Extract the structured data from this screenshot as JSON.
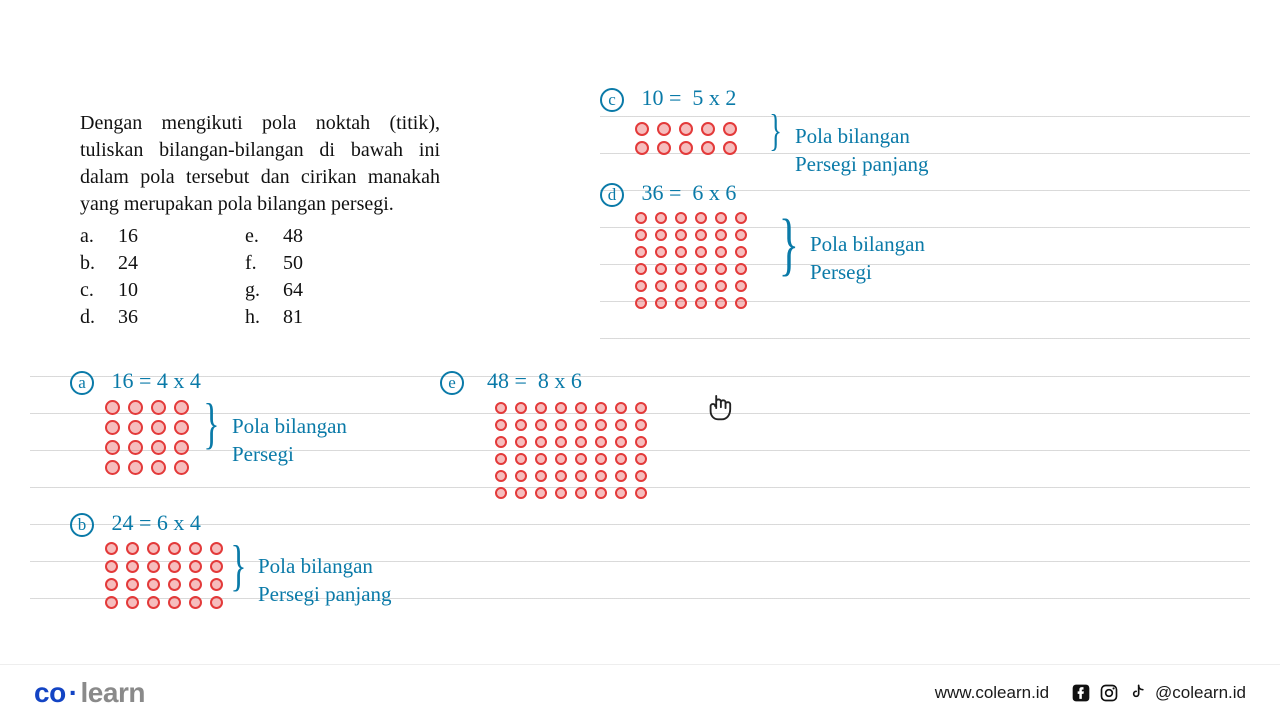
{
  "colors": {
    "print_text": "#111111",
    "hand_blue": "#0a7aa8",
    "dot_red_fill": "#e33a3a",
    "dot_red_border": "#c02424",
    "line": "#d0d0d0",
    "logo_blue": "#1344c4",
    "logo_gray": "#8a8a8a"
  },
  "fonts": {
    "print": "Georgia / Times, ~20px",
    "hand": "Comic Sans / Segoe Script, ~22px"
  },
  "question": {
    "text": "Dengan mengikuti pola noktah (titik), tuliskan bilangan-bilangan di bawah ini dalam pola tersebut dan cirikan manakah yang merupakan pola bilangan persegi."
  },
  "options": {
    "a": "16",
    "b": "24",
    "c": "10",
    "d": "36",
    "e": "48",
    "f": "50",
    "g": "64",
    "h": "81"
  },
  "answers": {
    "a": {
      "label": "a",
      "eq_left": "16 =",
      "eq_right": "4 x 4",
      "grid": {
        "rows": 4,
        "cols": 4,
        "dot_size": 15,
        "color": "#e33a3a"
      },
      "note_l1": "Pola bilangan",
      "note_l2": "Persegi",
      "note_color": "#0a7aa8"
    },
    "b": {
      "label": "b",
      "eq_left": "24 =",
      "eq_right": "6 x 4",
      "grid": {
        "rows": 4,
        "cols": 6,
        "dot_size": 13,
        "color": "#e33a3a"
      },
      "note_l1": "Pola bilangan",
      "note_l2": "Persegi panjang",
      "note_color": "#0a7aa8"
    },
    "c": {
      "label": "c",
      "eq_left": "10 =",
      "eq_right": "5 x 2",
      "grid": {
        "rows": 2,
        "cols": 5,
        "dot_size": 14,
        "color": "#e33a3a"
      },
      "note_l1": "Pola bilangan",
      "note_l2": "Persegi panjang",
      "note_color": "#0a7aa8"
    },
    "d": {
      "label": "d",
      "eq_left": "36 =",
      "eq_right": "6 x 6",
      "grid": {
        "rows": 6,
        "cols": 6,
        "dot_size": 12,
        "color": "#e33a3a"
      },
      "note_l1": "Pola bilangan",
      "note_l2": "Persegi",
      "note_color": "#0a7aa8"
    },
    "e": {
      "label": "e",
      "eq_left": "48 =",
      "eq_right": "8 x 6",
      "grid": {
        "rows": 6,
        "cols": 8,
        "dot_size": 12,
        "color": "#e33a3a"
      }
    }
  },
  "footer": {
    "logo_left": "co",
    "logo_right": "learn",
    "url": "www.colearn.id",
    "handle": "@colearn.id"
  }
}
